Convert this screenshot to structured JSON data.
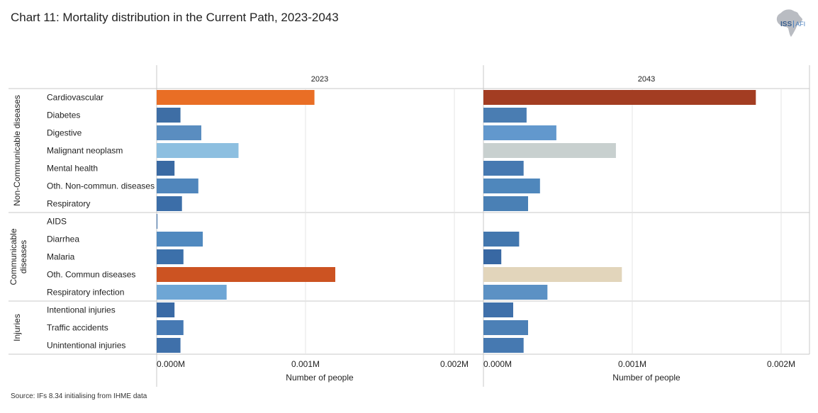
{
  "title": "Chart 11: Mortality distribution in the Current Path, 2023-2043",
  "source": "Source: IFs 8.34 initialising from IHME data",
  "logo": {
    "text": "ISS",
    "sub": "AFI",
    "icon": "africa-map-icon"
  },
  "chart_data": {
    "type": "bar",
    "orientation": "horizontal",
    "xlabel": "Number of people",
    "xlim": [
      0,
      0.0021
    ],
    "xticks": [
      0,
      0.001,
      0.002
    ],
    "xtick_labels": [
      "0.000M",
      "0.001M",
      "0.002M"
    ],
    "grid": true,
    "groups": [
      {
        "name": "Non-Communicable diseases",
        "label_lines": [
          "Non-Communicable diseases"
        ],
        "categories": [
          "Cardiovascular",
          "Diabetes",
          "Digestive",
          "Malignant neoplasm",
          "Mental health",
          "Oth. Non-commun. diseases",
          "Respiratory"
        ]
      },
      {
        "name": "Communicable diseases",
        "label_lines": [
          "Communicable",
          "diseases"
        ],
        "categories": [
          "AIDS",
          "Diarrhea",
          "Malaria",
          "Oth. Commun diseases",
          "Respiratory infection"
        ]
      },
      {
        "name": "Injuries",
        "label_lines": [
          "Injuries"
        ],
        "categories": [
          "Intentional injuries",
          "Traffic accidents",
          "Unintentional injuries"
        ]
      }
    ],
    "panels": [
      {
        "name": "2023",
        "values": [
          0.00106,
          0.00016,
          0.0003,
          0.00055,
          0.00012,
          0.00028,
          0.00017,
          5e-06,
          0.00031,
          0.00018,
          0.0012,
          0.00047,
          0.00012,
          0.00018,
          0.00016
        ],
        "colors": [
          "#e96e25",
          "#3e6ea5",
          "#5a8dc0",
          "#8dbfe0",
          "#3a6aa3",
          "#5086bc",
          "#3c6ea8",
          "#3c6ea8",
          "#5089bf",
          "#3c70aa",
          "#cc5322",
          "#6ea6d5",
          "#3a6aa5",
          "#4679b3",
          "#3f70aa"
        ]
      },
      {
        "name": "2043",
        "values": [
          0.00183,
          0.00029,
          0.00049,
          0.00089,
          0.00027,
          0.00038,
          0.0003,
          0.0,
          0.00024,
          0.00012,
          0.00093,
          0.00043,
          0.0002,
          0.0003,
          0.00027
        ],
        "colors": [
          "#a33d22",
          "#4a7db2",
          "#6298cd",
          "#c8d0cf",
          "#4679b1",
          "#4f87bc",
          "#4a80b5",
          "#4a80b5",
          "#4377ae",
          "#3868a3",
          "#e2d5bb",
          "#5c91c4",
          "#3f70aa",
          "#4c80b6",
          "#4679b1"
        ]
      }
    ]
  }
}
